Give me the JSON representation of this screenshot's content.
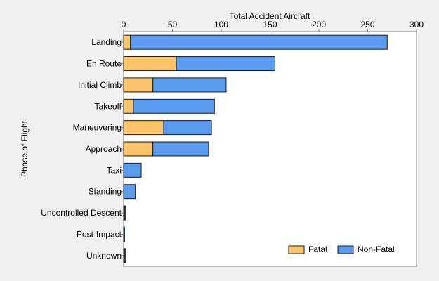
{
  "chart_data": {
    "type": "bar",
    "orientation": "horizontal",
    "stacked": true,
    "title": "",
    "xlabel": "Total Accident Aircraft",
    "ylabel": "Phase of Flight",
    "xlim": [
      0,
      300
    ],
    "x_ticks": [
      0,
      50,
      100,
      150,
      200,
      250,
      300
    ],
    "x_axis_position": "top",
    "grid": false,
    "legend_position": "bottom-right",
    "categories": [
      "Landing",
      "En Route",
      "Initial Climb",
      "Takeoff",
      "Maneuvering",
      "Approach",
      "Taxi",
      "Standing",
      "Uncontrolled Descent",
      "Post-Impact",
      "Unknown"
    ],
    "series": [
      {
        "name": "Fatal",
        "color": "#fcc56b",
        "values": [
          7,
          54,
          30,
          10,
          41,
          30,
          0,
          0,
          1,
          0,
          1
        ]
      },
      {
        "name": "Non-Fatal",
        "color": "#5b9cf0",
        "values": [
          263,
          101,
          75,
          83,
          49,
          57,
          18,
          12,
          1,
          1,
          1
        ]
      }
    ]
  }
}
